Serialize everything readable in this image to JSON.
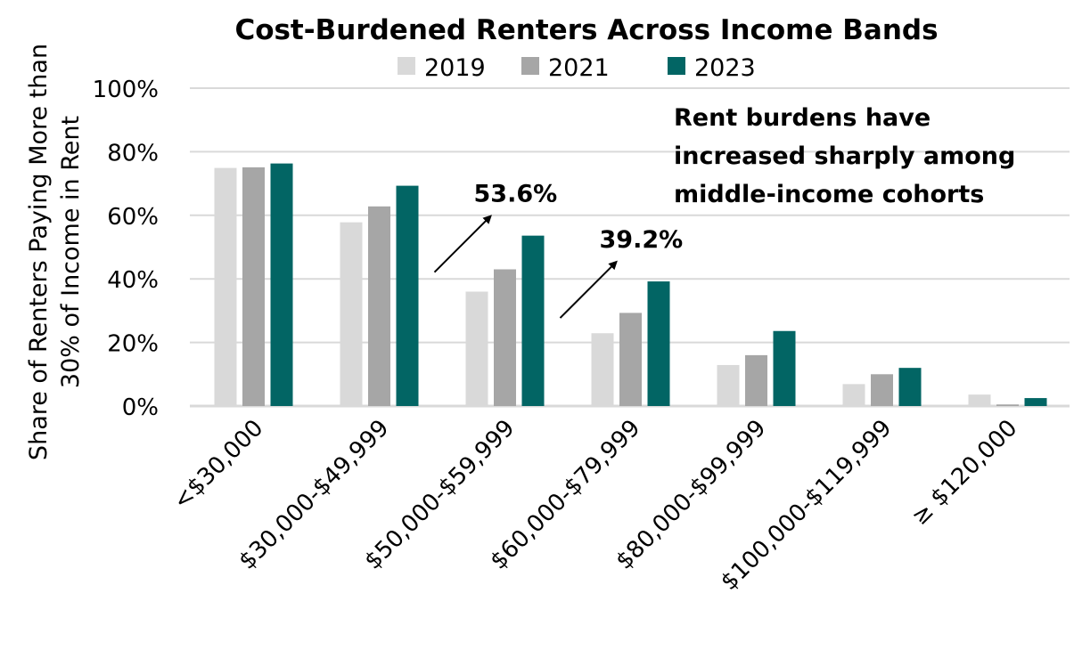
{
  "chart_data": {
    "type": "bar",
    "title": "Cost-Burdened Renters Across Income Bands",
    "xlabel": "",
    "ylabel": "Share of Renters Paying More than 30% of Income in Rent",
    "ylabel_lines": [
      "Share of Renters Paying More than",
      "30% of Income in Rent"
    ],
    "ylim": [
      0,
      100
    ],
    "yticks": [
      0,
      20,
      40,
      60,
      80,
      100
    ],
    "ytick_labels": [
      "0%",
      "20%",
      "40%",
      "60%",
      "80%",
      "100%"
    ],
    "grid": true,
    "legend_position": "top-center",
    "categories": [
      "<$30,000",
      "$30,000-$49,999",
      "$50,000-$59,999",
      "$60,000-$79,999",
      "$80,000-$99,999",
      "$100,000-$119,999",
      "≥ $120,000"
    ],
    "series": [
      {
        "name": "2019",
        "color": "#d9d9d9",
        "values": [
          74.9,
          57.8,
          36.0,
          22.9,
          12.9,
          6.9,
          3.6
        ]
      },
      {
        "name": "2021",
        "color": "#a6a6a6",
        "values": [
          75.1,
          62.8,
          43.0,
          29.3,
          16.0,
          10.0,
          0.5
        ]
      },
      {
        "name": "2023",
        "color": "#026564",
        "values": [
          76.3,
          69.3,
          53.6,
          39.2,
          23.6,
          12.0,
          2.5
        ]
      }
    ],
    "annotations": [
      {
        "text": "53.6%",
        "category_index": 2
      },
      {
        "text": "39.2%",
        "category_index": 3
      }
    ],
    "callout_lines": [
      "Rent burdens have",
      "increased sharply among",
      "middle-income cohorts"
    ]
  }
}
